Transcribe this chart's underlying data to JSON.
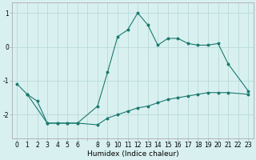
{
  "xlabel": "Humidex (Indice chaleur)",
  "background_color": "#d9f0f0",
  "grid_color": "#b8dada",
  "line_color": "#1a7a6e",
  "upper_x": [
    0,
    1,
    3,
    4,
    5,
    6,
    8,
    9,
    10,
    11,
    12,
    13,
    14,
    15,
    16,
    17,
    18,
    19,
    20,
    21,
    23
  ],
  "upper_y": [
    -1.1,
    -1.4,
    -2.25,
    -2.25,
    -2.25,
    -2.25,
    -1.75,
    -0.75,
    0.3,
    0.5,
    1.0,
    0.65,
    0.05,
    0.25,
    0.25,
    0.1,
    0.05,
    0.05,
    0.1,
    -0.5,
    -1.3
  ],
  "lower_x": [
    1,
    2,
    3,
    4,
    5,
    6,
    8,
    9,
    10,
    11,
    12,
    13,
    14,
    15,
    16,
    17,
    18,
    19,
    20,
    21,
    23
  ],
  "lower_y": [
    -1.4,
    -1.6,
    -2.25,
    -2.25,
    -2.25,
    -2.25,
    -2.3,
    -2.1,
    -2.0,
    -1.9,
    -1.8,
    -1.75,
    -1.65,
    -1.55,
    -1.5,
    -1.45,
    -1.4,
    -1.35,
    -1.35,
    -1.35,
    -1.4
  ],
  "ylim": [
    -2.7,
    1.3
  ],
  "yticks": [
    -2,
    -1,
    0,
    1
  ],
  "xtick_labels": [
    "0",
    "1",
    "2",
    "3",
    "4",
    "5",
    "6",
    "",
    "8",
    "9",
    "10",
    "11",
    "12",
    "13",
    "14",
    "15",
    "16",
    "17",
    "18",
    "19",
    "20",
    "21",
    "22",
    "23"
  ],
  "xtick_positions": [
    0,
    1,
    2,
    3,
    4,
    5,
    6,
    7,
    8,
    9,
    10,
    11,
    12,
    13,
    14,
    15,
    16,
    17,
    18,
    19,
    20,
    21,
    22,
    23
  ],
  "tick_fontsize": 5.5,
  "label_fontsize": 6.5
}
